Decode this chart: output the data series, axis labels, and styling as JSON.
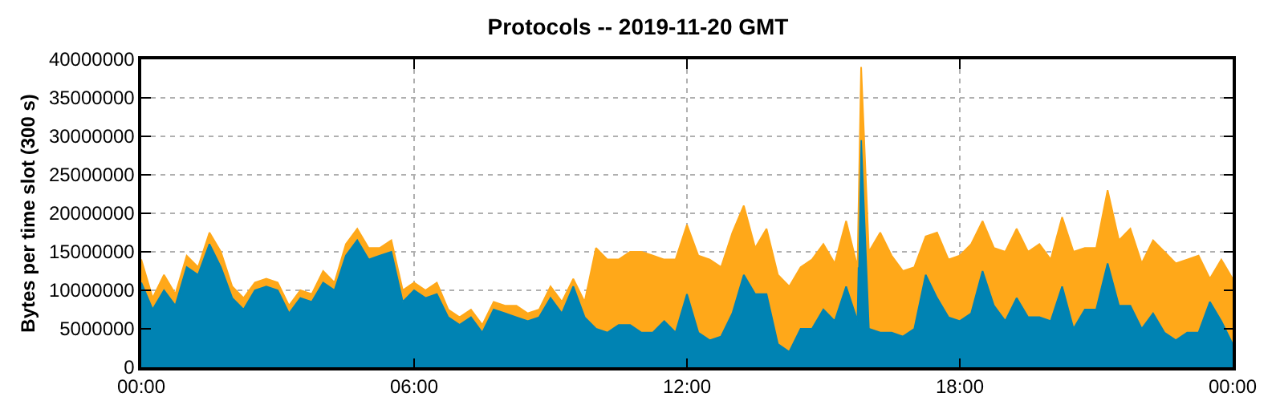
{
  "chart_data": {
    "type": "area",
    "stacked": true,
    "title": "Protocols -- 2019-11-20 GMT",
    "ylabel": "Bytes per time slot (300 s)",
    "x": [
      0,
      0.25,
      0.5,
      0.75,
      1,
      1.25,
      1.5,
      1.75,
      2,
      2.25,
      2.5,
      2.75,
      3,
      3.25,
      3.5,
      3.75,
      4,
      4.25,
      4.5,
      4.75,
      5,
      5.25,
      5.5,
      5.75,
      6,
      6.25,
      6.5,
      6.75,
      7,
      7.25,
      7.5,
      7.75,
      8,
      8.25,
      8.5,
      8.75,
      9,
      9.25,
      9.5,
      9.75,
      10,
      10.25,
      10.5,
      10.75,
      11,
      11.25,
      11.5,
      11.75,
      12,
      12.25,
      12.5,
      12.75,
      13,
      13.25,
      13.5,
      13.75,
      14,
      14.25,
      14.5,
      14.75,
      15,
      15.25,
      15.5,
      15.75,
      15.83,
      16,
      16.25,
      16.5,
      16.75,
      17,
      17.25,
      17.5,
      17.75,
      18,
      18.25,
      18.5,
      18.75,
      19,
      19.25,
      19.5,
      19.75,
      20,
      20.25,
      20.5,
      20.75,
      21,
      21.25,
      21.5,
      21.75,
      22,
      22.25,
      22.5,
      22.75,
      23,
      23.25,
      23.5,
      23.75,
      24
    ],
    "series": [
      {
        "color": "#0083b3",
        "values": [
          11000000,
          7500000,
          10000000,
          8000000,
          13000000,
          12000000,
          16000000,
          13000000,
          9000000,
          7500000,
          10000000,
          10500000,
          10000000,
          7000000,
          9000000,
          8500000,
          11000000,
          10000000,
          14500000,
          16500000,
          14000000,
          14500000,
          15000000,
          8500000,
          10000000,
          9000000,
          9500000,
          6500000,
          5500000,
          6500000,
          4500000,
          7500000,
          7000000,
          6500000,
          6000000,
          6500000,
          9000000,
          7000000,
          10500000,
          6500000,
          5000000,
          4500000,
          5500000,
          5500000,
          4500000,
          4500000,
          6000000,
          4500000,
          9500000,
          4500000,
          3500000,
          4000000,
          7000000,
          12000000,
          9500000,
          9500000,
          3000000,
          2000000,
          5000000,
          5000000,
          7500000,
          6000000,
          10500000,
          6000000,
          29500000,
          5000000,
          4500000,
          4500000,
          4000000,
          5000000,
          12000000,
          9000000,
          6500000,
          6000000,
          7000000,
          12500000,
          8000000,
          6000000,
          9000000,
          6500000,
          6500000,
          6000000,
          10500000,
          5000000,
          7500000,
          7500000,
          13500000,
          8000000,
          8000000,
          5000000,
          7000000,
          4500000,
          3500000,
          4500000,
          4500000,
          8500000,
          6000000,
          3000000
        ]
      },
      {
        "color": "#ffa819",
        "values": [
          3000000,
          1500000,
          2000000,
          1500000,
          1500000,
          1000000,
          1500000,
          2000000,
          1500000,
          1500000,
          1000000,
          1000000,
          1000000,
          1000000,
          1000000,
          1000000,
          1500000,
          1000000,
          1500000,
          1500000,
          1500000,
          1000000,
          1500000,
          1500000,
          1000000,
          1000000,
          1500000,
          1000000,
          1000000,
          1000000,
          1000000,
          1000000,
          1000000,
          1500000,
          1000000,
          1000000,
          1500000,
          1500000,
          1000000,
          2000000,
          10500000,
          9500000,
          8500000,
          9500000,
          10500000,
          10000000,
          8000000,
          9500000,
          9000000,
          10000000,
          10500000,
          9000000,
          10500000,
          9000000,
          6000000,
          8500000,
          9000000,
          8500000,
          8000000,
          9000000,
          8500000,
          7500000,
          8500000,
          7000000,
          9500000,
          10000000,
          13000000,
          10000000,
          8500000,
          8000000,
          5000000,
          8500000,
          7500000,
          8500000,
          9000000,
          6500000,
          7500000,
          9000000,
          9000000,
          8500000,
          9500000,
          8000000,
          9000000,
          10000000,
          8000000,
          8000000,
          9500000,
          8500000,
          10000000,
          8500000,
          9500000,
          10500000,
          10000000,
          9500000,
          10000000,
          3000000,
          8000000,
          8500000
        ]
      }
    ],
    "xlim": [
      0,
      24
    ],
    "xticks": [
      {
        "value": 0,
        "label": "00:00"
      },
      {
        "value": 6,
        "label": "06:00"
      },
      {
        "value": 12,
        "label": "12:00"
      },
      {
        "value": 18,
        "label": "18:00"
      },
      {
        "value": 24,
        "label": "00:00"
      }
    ],
    "ylim": [
      0,
      40000000
    ],
    "yticks": [
      0,
      5000000,
      10000000,
      15000000,
      20000000,
      25000000,
      30000000,
      35000000,
      40000000
    ],
    "grid": true
  }
}
